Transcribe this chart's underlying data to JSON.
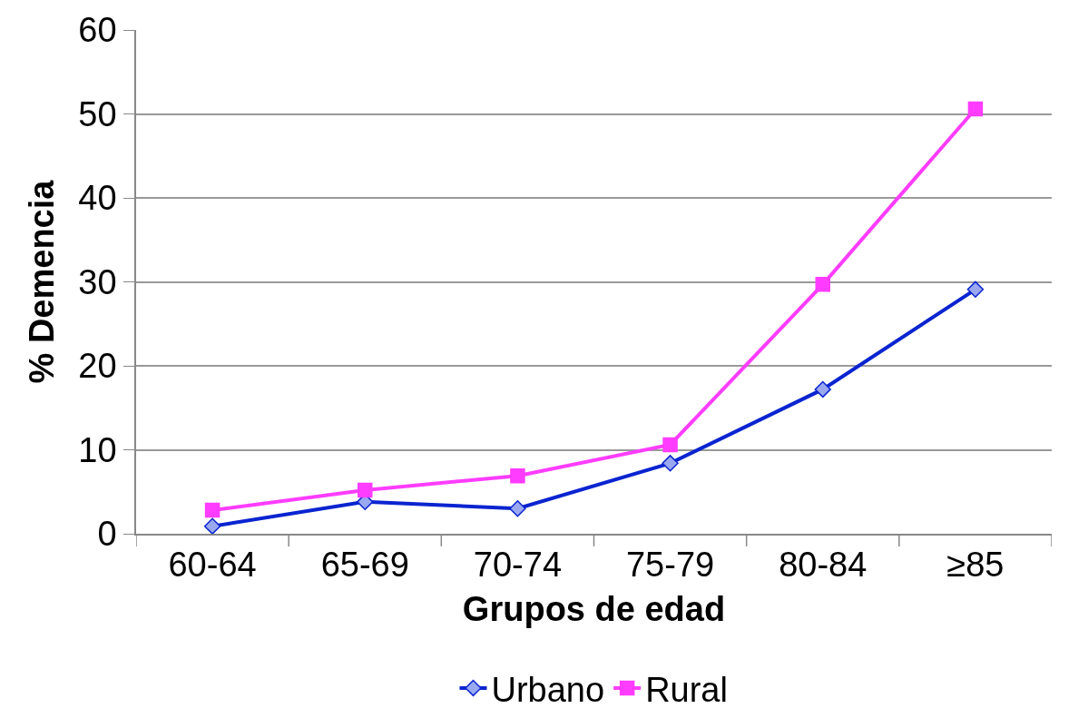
{
  "chart_data": {
    "type": "line",
    "xlabel": "Grupos de edad",
    "ylabel": "% Demencia",
    "categories": [
      "60-64",
      "65-69",
      "70-74",
      "75-79",
      "80-84",
      "≥85"
    ],
    "series": [
      {
        "name": "Urbano",
        "color": "#0a24d0",
        "marker": "diamond",
        "values": [
          0.9,
          3.8,
          3.0,
          8.4,
          17.2,
          29.1
        ]
      },
      {
        "name": "Rural",
        "color": "#ff3cff",
        "marker": "square",
        "values": [
          2.8,
          5.2,
          6.9,
          10.6,
          29.7,
          50.6
        ]
      }
    ],
    "ylim": [
      0,
      60
    ],
    "yticks": [
      0,
      10,
      20,
      30,
      40,
      50,
      60
    ],
    "grid": "y",
    "legend": "bottom",
    "line_style": "solid"
  }
}
